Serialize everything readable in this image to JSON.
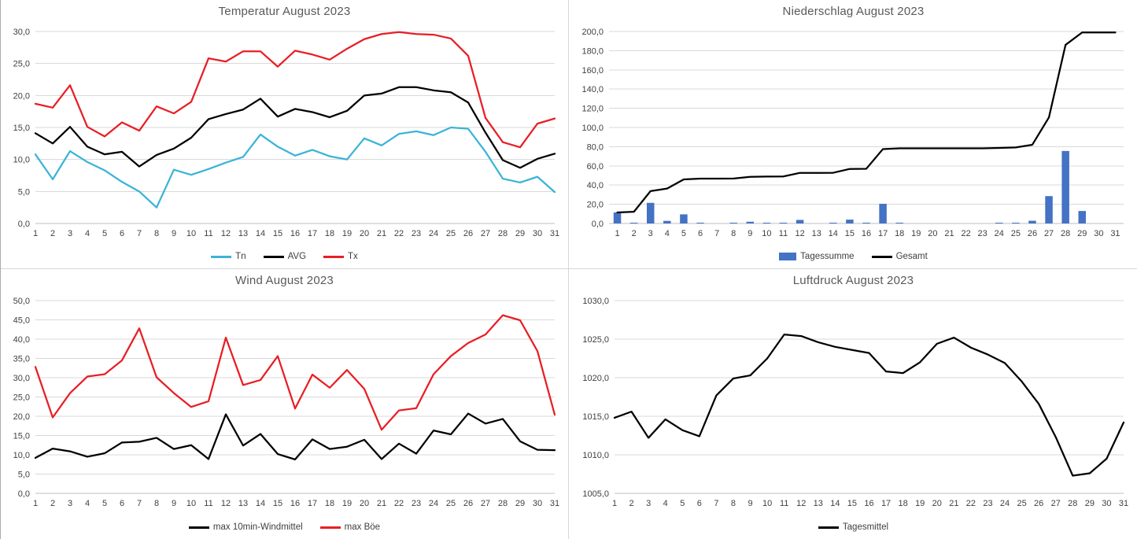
{
  "chart_data": [
    {
      "id": "temperature",
      "type": "line",
      "title": "Temperatur August 2023",
      "categories": [
        1,
        2,
        3,
        4,
        5,
        6,
        7,
        8,
        9,
        10,
        11,
        12,
        13,
        14,
        15,
        16,
        17,
        18,
        19,
        20,
        21,
        22,
        23,
        24,
        25,
        26,
        27,
        28,
        29,
        30,
        31
      ],
      "ylim": [
        0,
        30
      ],
      "ystep": 5,
      "grid": true,
      "legend_position": "bottom",
      "series": [
        {
          "name": "Tn",
          "kind": "line",
          "color": "#3ab4d8",
          "values": [
            10.8,
            6.9,
            11.3,
            9.6,
            8.3,
            6.5,
            5.0,
            2.5,
            8.4,
            7.6,
            8.5,
            9.5,
            10.4,
            13.9,
            12.0,
            10.6,
            11.5,
            10.5,
            10.0,
            13.3,
            12.2,
            14.0,
            14.4,
            13.8,
            15.0,
            14.8,
            11.2,
            7.0,
            6.4,
            7.3,
            4.9
          ]
        },
        {
          "name": "AVG",
          "kind": "line",
          "color": "#000000",
          "values": [
            14.1,
            12.5,
            15.1,
            12.0,
            10.8,
            11.2,
            8.9,
            10.7,
            11.7,
            13.4,
            16.3,
            17.1,
            17.8,
            19.5,
            16.7,
            17.9,
            17.4,
            16.6,
            17.6,
            20.0,
            20.3,
            21.3,
            21.3,
            20.8,
            20.5,
            18.9,
            14.2,
            9.9,
            8.7,
            10.1,
            10.9
          ]
        },
        {
          "name": "Tx",
          "kind": "line",
          "color": "#e81e25",
          "values": [
            18.7,
            18.1,
            21.6,
            15.1,
            13.6,
            15.8,
            14.5,
            18.3,
            17.2,
            19.0,
            25.8,
            25.3,
            26.9,
            26.9,
            24.5,
            27.0,
            26.4,
            25.6,
            27.3,
            28.8,
            29.6,
            29.9,
            29.6,
            29.5,
            28.9,
            26.2,
            16.5,
            12.7,
            11.9,
            15.6,
            16.4
          ]
        }
      ]
    },
    {
      "id": "precipitation",
      "type": "bar+line",
      "title": "Niederschlag August 2023",
      "categories": [
        1,
        2,
        3,
        4,
        5,
        6,
        7,
        8,
        9,
        10,
        11,
        12,
        13,
        14,
        15,
        16,
        17,
        18,
        19,
        20,
        21,
        22,
        23,
        24,
        25,
        26,
        27,
        28,
        29,
        30,
        31
      ],
      "ylim": [
        0,
        200
      ],
      "ystep": 20,
      "grid": true,
      "legend_position": "bottom",
      "series": [
        {
          "name": "Tagessumme",
          "kind": "bar",
          "color": "#4472c4",
          "values": [
            11.5,
            0.7,
            21.5,
            2.7,
            9.5,
            0.8,
            0,
            0.1,
            1.8,
            0.3,
            0.1,
            3.7,
            0,
            0.1,
            4.0,
            0.2,
            20.5,
            0.8,
            0,
            0,
            0,
            0,
            0,
            0.4,
            0.5,
            2.8,
            28.5,
            75.5,
            13.0,
            0,
            0
          ]
        },
        {
          "name": "Gesamt",
          "kind": "line",
          "color": "#000000",
          "values": [
            11.5,
            12.2,
            33.7,
            36.4,
            45.9,
            46.7,
            46.7,
            46.8,
            48.6,
            48.9,
            49.0,
            52.7,
            52.7,
            52.8,
            56.8,
            57.0,
            77.5,
            78.3,
            78.3,
            78.3,
            78.3,
            78.3,
            78.3,
            78.7,
            79.2,
            82.0,
            110.5,
            186.0,
            199.0,
            199.0,
            199.0
          ]
        }
      ]
    },
    {
      "id": "wind",
      "type": "line",
      "title": "Wind August 2023",
      "categories": [
        1,
        2,
        3,
        4,
        5,
        6,
        7,
        8,
        9,
        10,
        11,
        12,
        13,
        14,
        15,
        16,
        17,
        18,
        19,
        20,
        21,
        22,
        23,
        24,
        25,
        26,
        27,
        28,
        29,
        30,
        31
      ],
      "ylim": [
        0,
        50
      ],
      "ystep": 5,
      "grid": true,
      "legend_position": "bottom",
      "series": [
        {
          "name": "max 10min-Windmittel",
          "kind": "line",
          "color": "#000000",
          "values": [
            9.2,
            11.6,
            10.9,
            9.5,
            10.4,
            13.2,
            13.4,
            14.4,
            11.5,
            12.5,
            8.9,
            20.5,
            12.4,
            15.4,
            10.2,
            8.8,
            14.0,
            11.5,
            12.1,
            13.9,
            8.9,
            12.9,
            10.3,
            16.3,
            15.3,
            20.7,
            18.1,
            19.3,
            13.5,
            11.3,
            11.2
          ]
        },
        {
          "name": "max Böe",
          "kind": "line",
          "color": "#e81e25",
          "values": [
            32.8,
            19.7,
            26.0,
            30.3,
            30.9,
            34.5,
            42.8,
            30.1,
            26.0,
            22.4,
            23.9,
            40.4,
            28.1,
            29.4,
            35.6,
            22.0,
            30.8,
            27.4,
            32.0,
            27.1,
            16.5,
            21.5,
            22.1,
            30.9,
            35.6,
            39.0,
            41.2,
            46.2,
            44.9,
            36.9,
            20.4
          ]
        }
      ]
    },
    {
      "id": "pressure",
      "type": "line",
      "title": "Luftdruck August 2023",
      "categories": [
        1,
        2,
        3,
        4,
        5,
        6,
        7,
        8,
        9,
        10,
        11,
        12,
        13,
        14,
        15,
        16,
        17,
        18,
        19,
        20,
        21,
        22,
        23,
        24,
        25,
        26,
        27,
        28,
        29,
        30,
        31
      ],
      "ylim": [
        1005,
        1030
      ],
      "ystep": 5,
      "grid": true,
      "legend_position": "bottom",
      "series": [
        {
          "name": "Tagesmittel",
          "kind": "line",
          "color": "#000000",
          "values": [
            1014.8,
            1015.6,
            1012.2,
            1014.6,
            1013.2,
            1012.4,
            1017.7,
            1019.9,
            1020.3,
            1022.5,
            1025.6,
            1025.4,
            1024.6,
            1024.0,
            1023.6,
            1023.2,
            1020.8,
            1020.6,
            1022.0,
            1024.4,
            1025.2,
            1023.9,
            1023.0,
            1021.9,
            1019.5,
            1016.6,
            1012.3,
            1007.3,
            1007.6,
            1009.5,
            1014.2
          ]
        }
      ]
    }
  ]
}
